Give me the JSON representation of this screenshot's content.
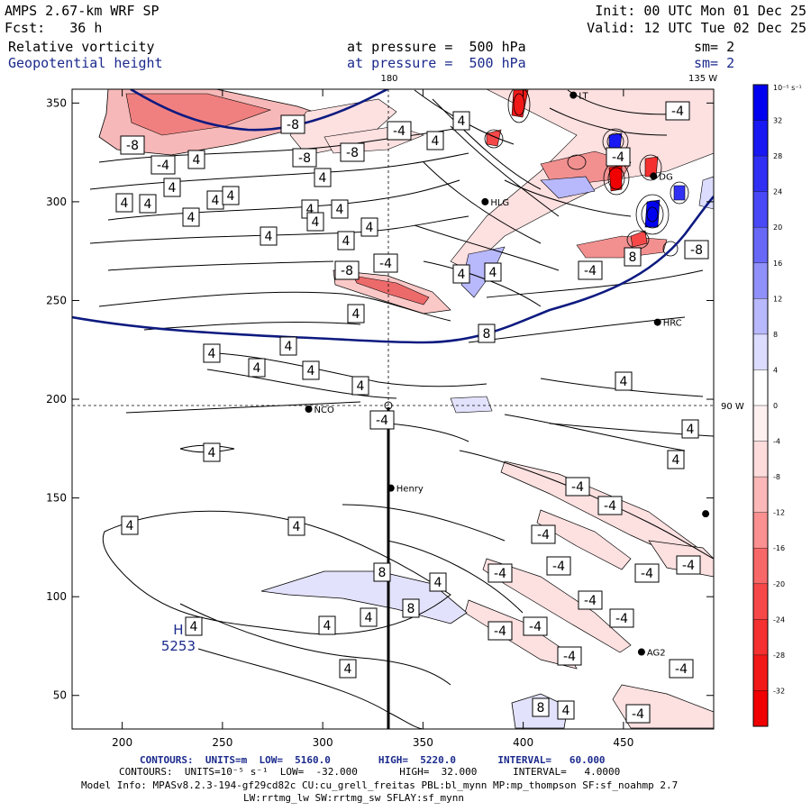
{
  "header": {
    "model_name": "AMPS 2.67-km WRF SP",
    "init": "Init: 00 UTC Mon 01 Dec 25",
    "forecast": "Fcst:   36 h",
    "valid": "Valid: 12 UTC Tue 02 Dec 25",
    "field1": {
      "name": "Relative vorticity",
      "pressure": "at pressure =  500 hPa",
      "sm": "sm= 2",
      "color": "#000000"
    },
    "field2": {
      "name": "Geopotential height",
      "pressure": "at pressure =  500 hPa",
      "sm": "sm= 2",
      "color": "#1b2a8c"
    }
  },
  "map": {
    "x_ticks": [
      "200",
      "250",
      "300",
      "350",
      "400",
      "450"
    ],
    "y_ticks": [
      "50",
      "100",
      "150",
      "200",
      "250",
      "300",
      "350"
    ],
    "lon_labels": {
      "lon180": "180",
      "lon135w": "135 W",
      "lon90w": "90 W"
    },
    "stations": [
      {
        "name": "NCO",
        "x": 293,
        "y": 195
      },
      {
        "name": "Henry",
        "x": 334,
        "y": 155
      },
      {
        "name": "HRC",
        "x": 467,
        "y": 239
      },
      {
        "name": "AG2",
        "x": 459,
        "y": 72
      },
      {
        "name": "HLG",
        "x": 381,
        "y": 300
      },
      {
        "name": "DG",
        "x": 465,
        "y": 313
      },
      {
        "name": "LT",
        "x": 425,
        "y": 354
      },
      {
        "name": "",
        "x": 491,
        "y": 142
      }
    ],
    "high_center": {
      "label": "H",
      "value": "5253",
      "x": 237,
      "y": 80
    },
    "colors": {
      "geopotential": "#0d1a80",
      "positive_shade": "#2020ff",
      "negative_shade": "#ff2020"
    }
  },
  "colorbar": {
    "units": "10⁻⁵ s⁻¹",
    "labels": [
      "32",
      "28",
      "24",
      "20",
      "16",
      "12",
      "8",
      "4",
      "0",
      "-4",
      "-8",
      "-12",
      "-16",
      "-20",
      "-24",
      "-28",
      "-32"
    ],
    "colors": [
      "#0000f0",
      "#1818f2",
      "#3030f4",
      "#4848f6",
      "#6868f8",
      "#9090fa",
      "#b8b8fc",
      "#dcdcfe",
      "#ffffff",
      "#fff0f0",
      "#fedcdc",
      "#fcb8b8",
      "#fa9090",
      "#f86868",
      "#f64848",
      "#f43030",
      "#f21818",
      "#f00000"
    ]
  },
  "footer": {
    "line1": "CONTOURS:  UNITS=m  LOW=  5160.0        HIGH=  5220.0       INTERVAL=   60.000",
    "line2": "CONTOURS:  UNITS=10⁻⁵ s⁻¹  LOW=  -32.000       HIGH=  32.000      INTERVAL=   4.0000",
    "line3": "Model Info: MPASv8.2.3-194-gf29cd82c CU:cu_grell_freitas PBL:bl_mynn MP:mp_thompson SF:sf_noahmp 2.7",
    "line4": "LW:rrtmg_lw SW:rrtmg_sw SFLAY:sf_mynn"
  }
}
